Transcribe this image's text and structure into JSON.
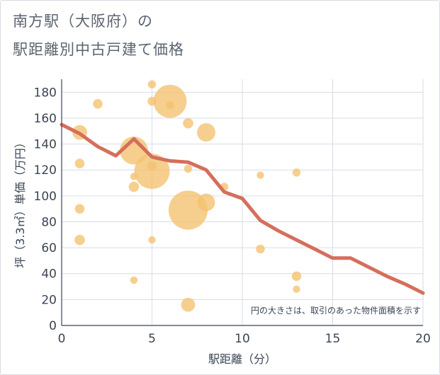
{
  "title": {
    "line1": "南方駅（大阪府）の",
    "line2": "駅距離別中古戸建て価格"
  },
  "chart_data": {
    "type": "scatter",
    "title": "南方駅（大阪府）の駅距離別中古戸建て価格",
    "xlabel": "駅距離（分）",
    "ylabel": "坪（3.3㎡）単価（万円）",
    "xlim": [
      0,
      20
    ],
    "ylim": [
      0,
      190
    ],
    "x_ticks": [
      "0",
      "5",
      "10",
      "15",
      "20"
    ],
    "y_ticks": [
      "0",
      "20",
      "40",
      "60",
      "80",
      "100",
      "120",
      "140",
      "160",
      "180"
    ],
    "note": "円の大きさは、取引のあった物件面積を示す",
    "colors": {
      "bubble": "#f3c16e",
      "line": "#d46f5c",
      "grid": "#d6dde6"
    },
    "bubbles": [
      {
        "x": 1,
        "y": 149,
        "size": 2.0
      },
      {
        "x": 1,
        "y": 125,
        "size": 1.3
      },
      {
        "x": 1,
        "y": 90,
        "size": 1.3
      },
      {
        "x": 1,
        "y": 66,
        "size": 1.4
      },
      {
        "x": 2,
        "y": 171,
        "size": 1.3
      },
      {
        "x": 4,
        "y": 135,
        "size": 3.8
      },
      {
        "x": 4,
        "y": 115,
        "size": 1.0
      },
      {
        "x": 4,
        "y": 107,
        "size": 1.4
      },
      {
        "x": 4,
        "y": 35,
        "size": 1.0
      },
      {
        "x": 5,
        "y": 186,
        "size": 1.1
      },
      {
        "x": 5,
        "y": 173,
        "size": 1.2
      },
      {
        "x": 5,
        "y": 123,
        "size": 1.3
      },
      {
        "x": 5,
        "y": 119,
        "size": 4.8
      },
      {
        "x": 5,
        "y": 66,
        "size": 1.0
      },
      {
        "x": 6,
        "y": 173,
        "size": 4.5
      },
      {
        "x": 6,
        "y": 170,
        "size": 1.1
      },
      {
        "x": 7,
        "y": 156,
        "size": 1.4
      },
      {
        "x": 7,
        "y": 121,
        "size": 1.1
      },
      {
        "x": 7,
        "y": 89,
        "size": 5.3
      },
      {
        "x": 7,
        "y": 16,
        "size": 1.9
      },
      {
        "x": 8,
        "y": 149,
        "size": 2.5
      },
      {
        "x": 8,
        "y": 95,
        "size": 2.4
      },
      {
        "x": 9,
        "y": 107,
        "size": 1.1
      },
      {
        "x": 11,
        "y": 116,
        "size": 1.0
      },
      {
        "x": 11,
        "y": 59,
        "size": 1.2
      },
      {
        "x": 13,
        "y": 118,
        "size": 1.1
      },
      {
        "x": 13,
        "y": 38,
        "size": 1.3
      },
      {
        "x": 13,
        "y": 28,
        "size": 1.0
      }
    ],
    "trend": {
      "x": [
        0,
        1,
        2,
        3,
        4,
        5,
        6,
        7,
        8,
        9,
        10,
        11,
        12,
        13,
        14,
        15,
        16,
        17,
        18,
        19,
        20
      ],
      "y": [
        155,
        148,
        138,
        131,
        144,
        130,
        127,
        126,
        120,
        103,
        98,
        81,
        73,
        66,
        59,
        52,
        52,
        45,
        38,
        32,
        25
      ]
    }
  }
}
